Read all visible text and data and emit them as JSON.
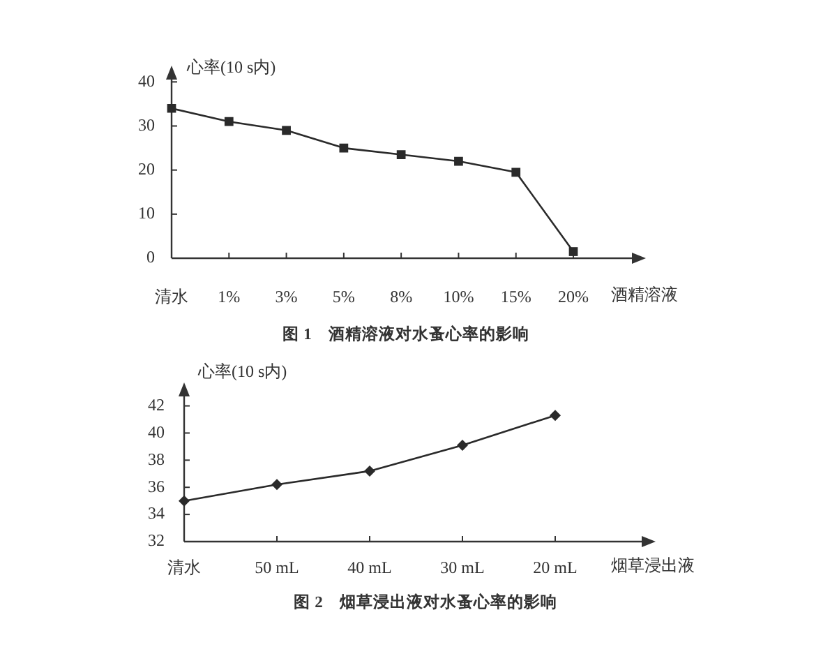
{
  "chart_data": [
    {
      "type": "line",
      "title": "图 1　酒精溶液对水蚤心率的影响",
      "xlabel": "酒精溶液",
      "ylabel": "心率(10 s内)",
      "categories": [
        "清水",
        "1%",
        "3%",
        "5%",
        "8%",
        "10%",
        "15%",
        "20%"
      ],
      "series": [
        {
          "color": "#2a2a2a",
          "values": [
            34,
            31,
            29,
            25,
            23.5,
            22,
            19.5,
            1.5
          ]
        }
      ],
      "ylim": [
        0,
        43
      ],
      "yticks": [
        0,
        10,
        20,
        30,
        40
      ],
      "marker": "square",
      "line_style": "solid"
    },
    {
      "type": "line",
      "title": "图 2　烟草浸出液对水蚤心率的影响",
      "xlabel": "烟草浸出液",
      "ylabel": "心率(10 s内)",
      "categories": [
        "清水",
        "50 mL",
        "40 mL",
        "30 mL",
        "20 mL"
      ],
      "series": [
        {
          "color": "#2a2a2a",
          "values": [
            35,
            36.2,
            37.2,
            39.1,
            41.3
          ]
        }
      ],
      "ylim": [
        32,
        43.5
      ],
      "yticks": [
        32,
        34,
        36,
        38,
        40,
        42
      ],
      "marker": "diamond",
      "line_style": "solid"
    }
  ]
}
